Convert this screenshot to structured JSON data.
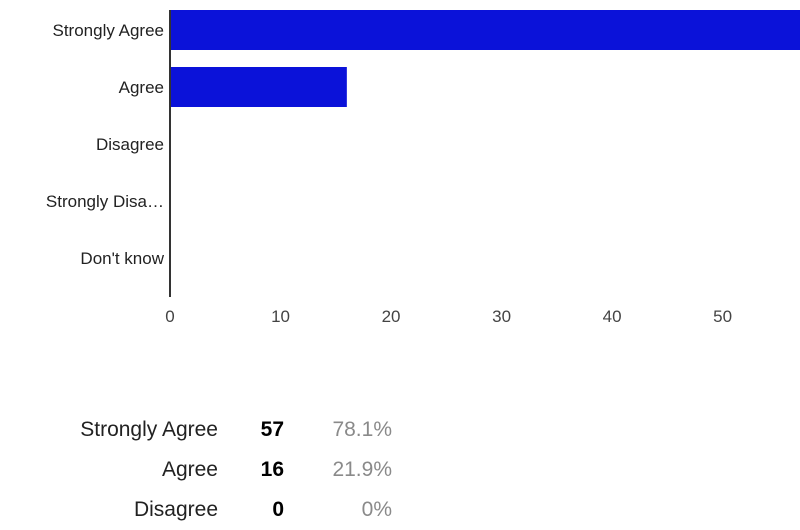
{
  "colors": {
    "bar": "#0b12d9",
    "axis": "#333333",
    "text": "#222222",
    "muted": "#8a8a8a"
  },
  "chart_data": {
    "type": "bar",
    "orientation": "horizontal",
    "title": "",
    "xlabel": "",
    "ylabel": "",
    "categories": [
      "Strongly Agree",
      "Agree",
      "Disagree",
      "Strongly Disa…",
      "Don't know"
    ],
    "values": [
      57,
      16,
      0,
      0,
      0
    ],
    "xlim": [
      0,
      57
    ],
    "xticks": [
      0,
      10,
      20,
      30,
      40,
      50
    ],
    "grid": false,
    "legend": "none"
  },
  "summary": {
    "rows": [
      {
        "label": "Strongly Agree",
        "count": "57",
        "percent": "78.1%"
      },
      {
        "label": "Agree",
        "count": "16",
        "percent": "21.9%"
      },
      {
        "label": "Disagree",
        "count": "0",
        "percent": "0%"
      }
    ]
  }
}
